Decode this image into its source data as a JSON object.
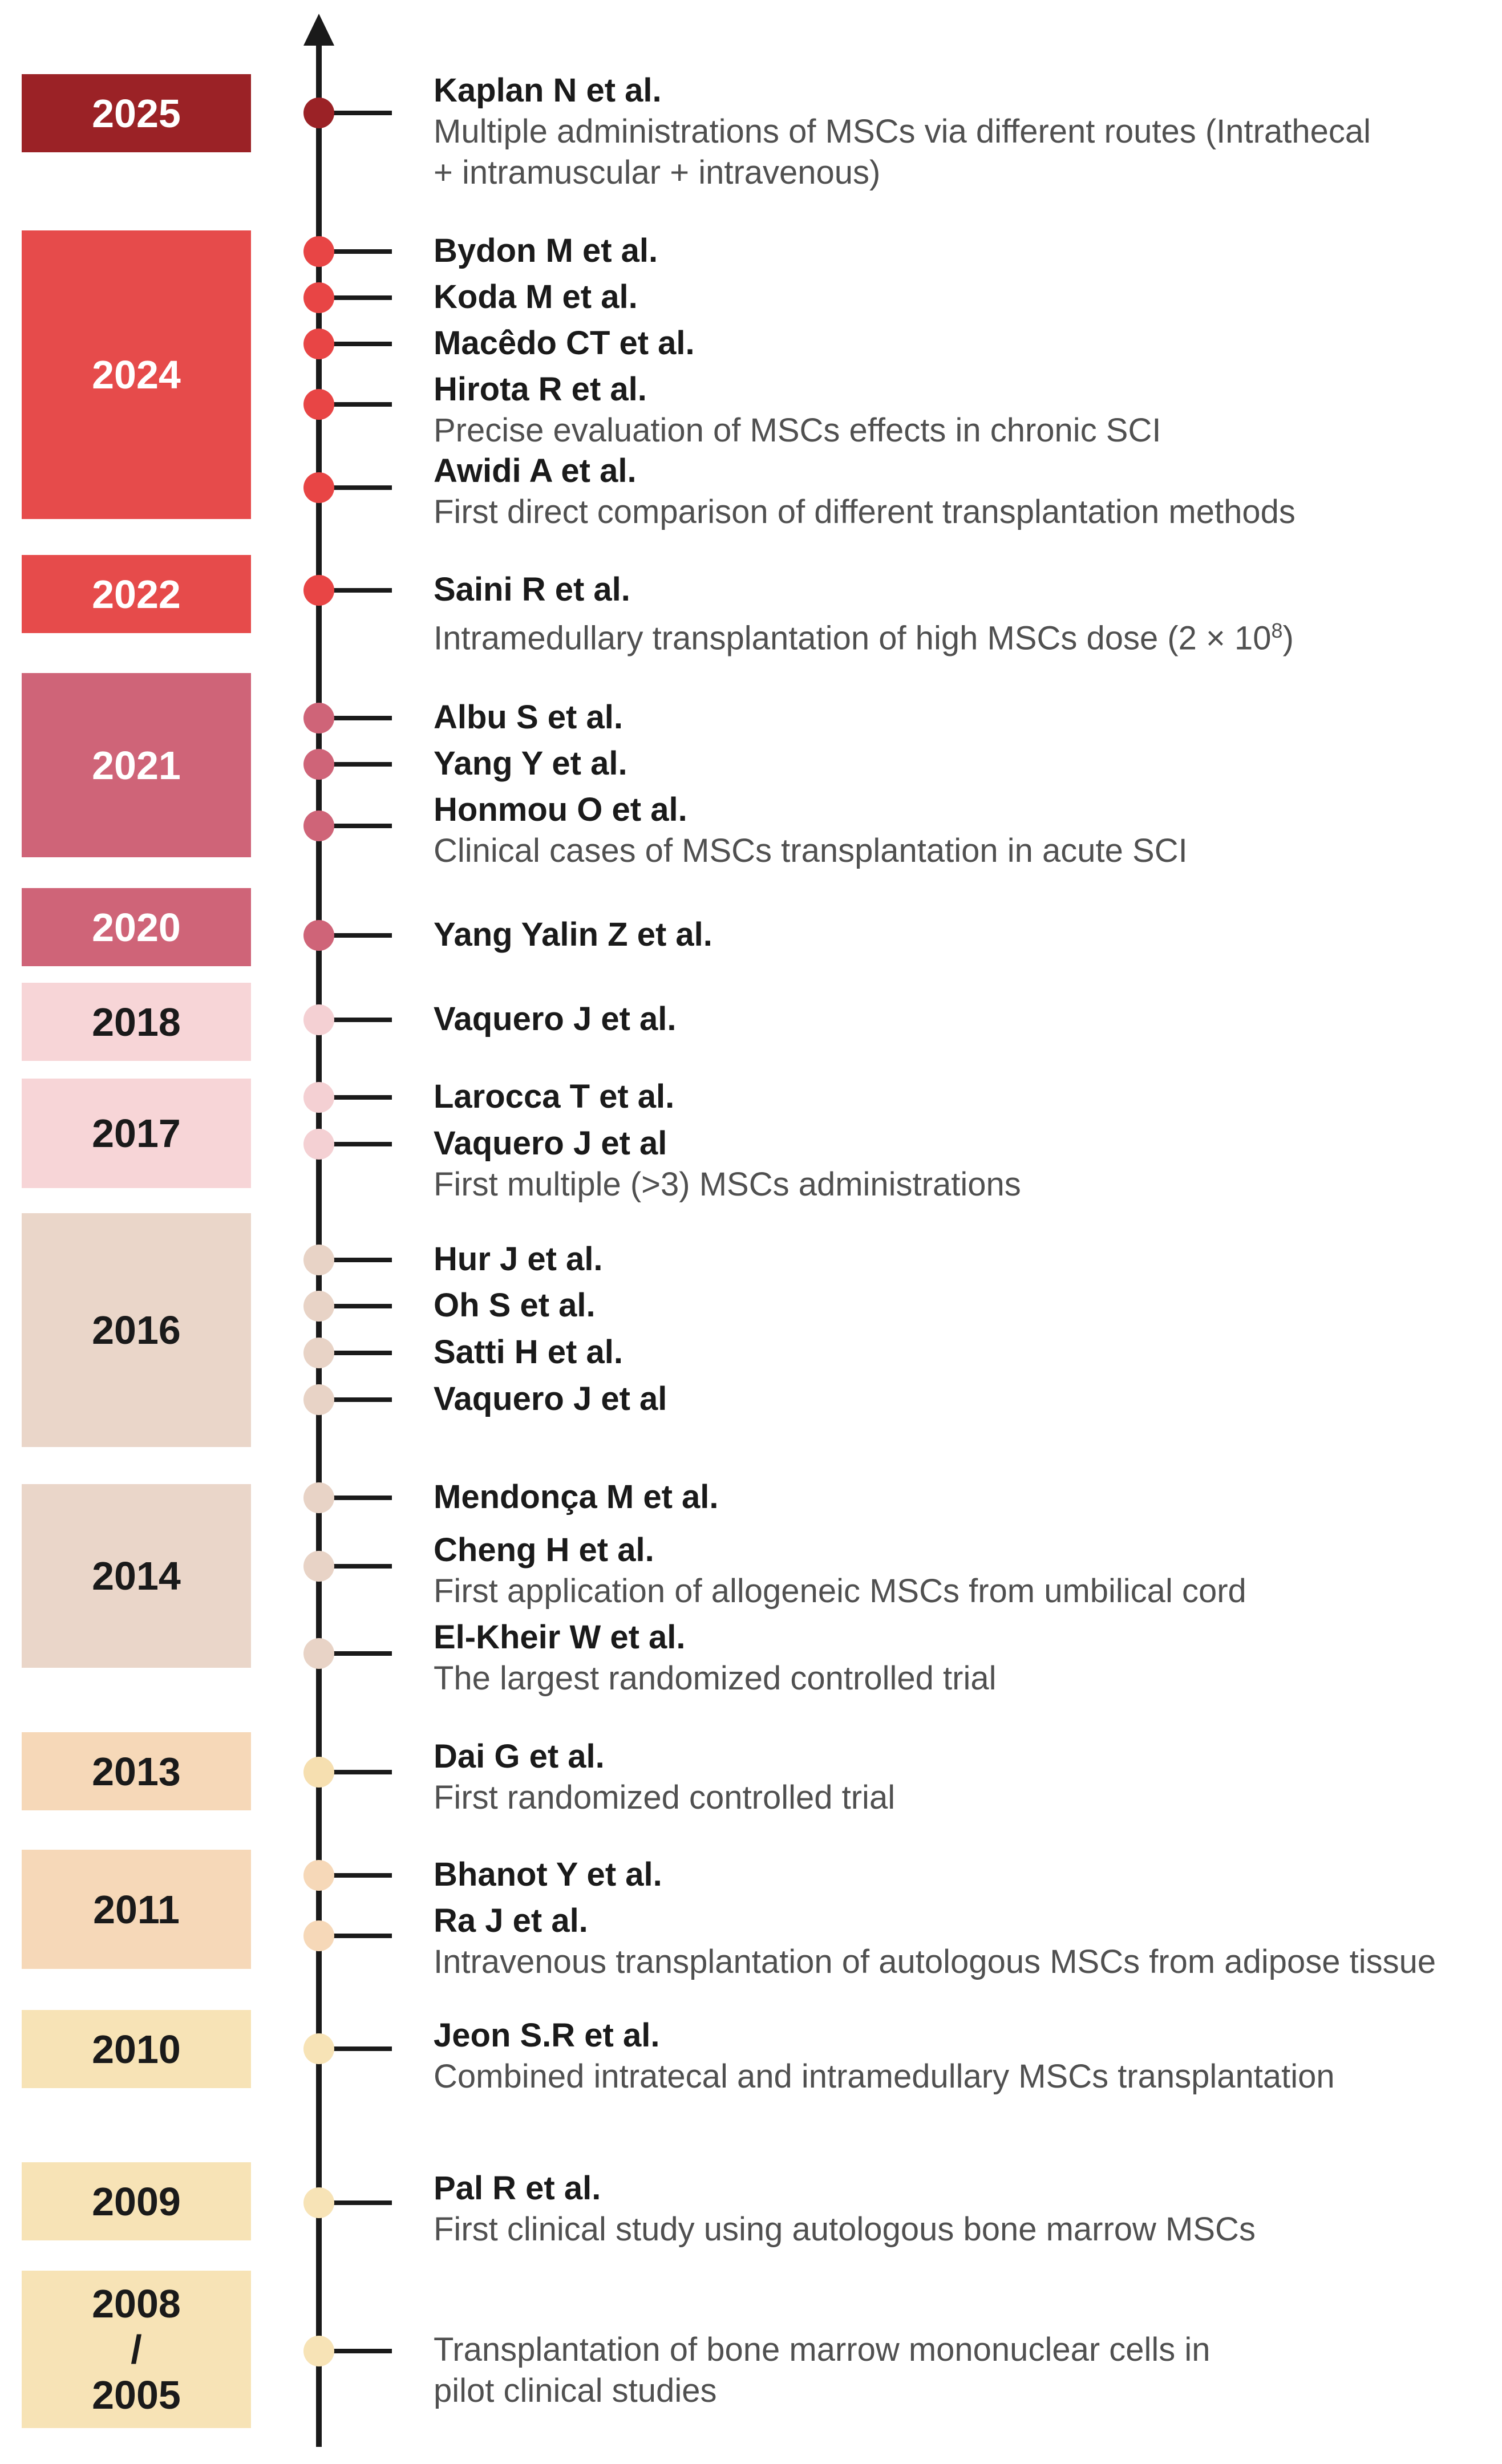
{
  "colors": {
    "axis": "#1a1a1a",
    "year_2025": "#9b2226",
    "year_2022_2024": "#e64b4b",
    "year_2020_2021": "#cf6478",
    "year_2017_2018": "#f7d5d7",
    "year_2014_2016": "#ead6c9",
    "year_2011_2013": "#f6d8b8",
    "year_2005_2010": "#f7e3b6"
  },
  "years": [
    {
      "label": "2025",
      "color": "#9b2226",
      "text_color": "#ffffff",
      "dot_color": "#9b2226"
    },
    {
      "label": "2024",
      "color": "#e64b4b",
      "text_color": "#ffffff",
      "dot_color": "#e84545"
    },
    {
      "label": "2022",
      "color": "#e64b4b",
      "text_color": "#ffffff",
      "dot_color": "#e84545"
    },
    {
      "label": "2021",
      "color": "#cf6478",
      "text_color": "#ffffff",
      "dot_color": "#cf6478"
    },
    {
      "label": "2020",
      "color": "#cf6478",
      "text_color": "#ffffff",
      "dot_color": "#cf6478"
    },
    {
      "label": "2018",
      "color": "#f7d5d7",
      "text_color": "#1a1a1a",
      "dot_color": "#f4d0d3"
    },
    {
      "label": "2017",
      "color": "#f7d5d7",
      "text_color": "#1a1a1a",
      "dot_color": "#f4d0d3"
    },
    {
      "label": "2016",
      "color": "#ead6c9",
      "text_color": "#1a1a1a",
      "dot_color": "#e8d3c6"
    },
    {
      "label": "2014",
      "color": "#ead6c9",
      "text_color": "#1a1a1a",
      "dot_color": "#e8d3c6"
    },
    {
      "label": "2013",
      "color": "#f6d8b8",
      "text_color": "#1a1a1a",
      "dot_color": "#f6dfb0"
    },
    {
      "label": "2011",
      "color": "#f6d8b8",
      "text_color": "#1a1a1a",
      "dot_color": "#f6d8b8"
    },
    {
      "label": "2010",
      "color": "#f7e3b6",
      "text_color": "#1a1a1a",
      "dot_color": "#f7e3b6"
    },
    {
      "label": "2009",
      "color": "#f7e3b6",
      "text_color": "#1a1a1a",
      "dot_color": "#f7e3b6"
    },
    {
      "label_lines": [
        "2008",
        "/",
        "2005"
      ],
      "color": "#f7e3b6",
      "text_color": "#1a1a1a",
      "dot_color": "#f7e3b6"
    }
  ],
  "entries": [
    {
      "author": "Kaplan N et al.",
      "desc": [
        "Multiple administrations of MSCs via different routes (Intrathecal",
        "+ intramuscular + intravenous)"
      ],
      "dot_color": "#9b2226"
    },
    {
      "author": "Bydon M et al.",
      "desc": [],
      "dot_color": "#e84545"
    },
    {
      "author": "Koda M et al.",
      "desc": [],
      "dot_color": "#e84545"
    },
    {
      "author": "Macêdo CT et al.",
      "desc": [],
      "dot_color": "#e84545"
    },
    {
      "author": "Hirota R et al.",
      "desc": [
        "Precise evaluation of MSCs effects in chronic SCI"
      ],
      "dot_color": "#e84545"
    },
    {
      "author": "Awidi A et al.",
      "desc": [
        "First direct comparison of different transplantation methods"
      ],
      "dot_color": "#e84545"
    },
    {
      "author": "Saini R et al.",
      "desc": [
        "Intramedullary transplantation of high MSCs dose (2 × 10",
        "8",
        ")"
      ],
      "dot_color": "#e84545"
    },
    {
      "author": "Albu S et al.",
      "desc": [],
      "dot_color": "#cf6478"
    },
    {
      "author": "Yang Y et al.",
      "desc": [],
      "dot_color": "#cf6478"
    },
    {
      "author": "Honmou O et al.",
      "desc": [
        "Clinical cases of MSCs transplantation in acute SCI"
      ],
      "dot_color": "#cf6478"
    },
    {
      "author": "Yang Yalin Z et al.",
      "desc": [],
      "dot_color": "#cf6478"
    },
    {
      "author": "Vaquero J et al.",
      "desc": [],
      "dot_color": "#f4d0d3"
    },
    {
      "author": "Larocca T et al.",
      "desc": [],
      "dot_color": "#f4d0d3"
    },
    {
      "author": "Vaquero J et al",
      "desc": [
        "First multiple (>3) MSCs administrations"
      ],
      "dot_color": "#f4d0d3"
    },
    {
      "author": "Hur J et al.",
      "desc": [],
      "dot_color": "#e8d3c6"
    },
    {
      "author": "Oh S et al.",
      "desc": [],
      "dot_color": "#e8d3c6"
    },
    {
      "author": "Satti H et al.",
      "desc": [],
      "dot_color": "#e8d3c6"
    },
    {
      "author": "Vaquero J et al",
      "desc": [],
      "dot_color": "#e8d3c6"
    },
    {
      "author": "Mendonça M et al.",
      "desc": [],
      "dot_color": "#e8d3c6"
    },
    {
      "author": "Cheng H et al.",
      "desc": [
        "First application of allogeneic MSCs from umbilical cord"
      ],
      "dot_color": "#e8d3c6"
    },
    {
      "author": "El-Kheir W et al.",
      "desc": [
        "The largest randomized controlled trial"
      ],
      "dot_color": "#e8d3c6"
    },
    {
      "author": "Dai G et al.",
      "desc": [
        "First randomized controlled trial"
      ],
      "dot_color": "#f6dfb0"
    },
    {
      "author": "Bhanot Y et al.",
      "desc": [],
      "dot_color": "#f6d8b8"
    },
    {
      "author": "Ra J et al.",
      "desc": [
        "Intravenous transplantation of autologous MSCs from adipose tissue"
      ],
      "dot_color": "#f6d8b8"
    },
    {
      "author": "Jeon S.R et al.",
      "desc": [
        "Combined intratecal and intramedullary MSCs transplantation"
      ],
      "dot_color": "#f7e3b6"
    },
    {
      "author": "Pal R et al.",
      "desc": [
        "First clinical study using autologous bone marrow MSCs"
      ],
      "dot_color": "#f7e3b6"
    },
    {
      "author": "",
      "desc": [
        "Transplantation of bone marrow mononuclear cells in",
        "pilot clinical studies"
      ],
      "dot_color": "#f7e3b6"
    }
  ]
}
